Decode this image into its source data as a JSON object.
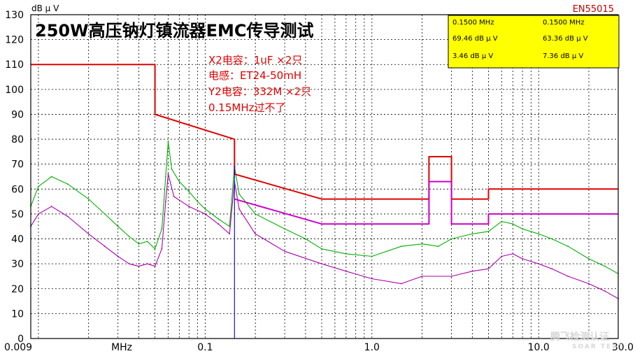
{
  "chart_data": {
    "type": "line",
    "title": "250W高压钠灯镇流器EMC传导测试",
    "ylabel": "dB μ V",
    "standard": "EN55015",
    "xscale": "log",
    "xlim": [
      0.009,
      30.0
    ],
    "ylim": [
      0,
      130
    ],
    "grid": true,
    "x_tick_labels": [
      {
        "value": 0.009,
        "label": "0.009"
      },
      {
        "value": 0.0316,
        "label": "MHz"
      },
      {
        "value": 0.1,
        "label": "0.1"
      },
      {
        "value": 1.0,
        "label": "1.0"
      },
      {
        "value": 10.0,
        "label": "10.0"
      },
      {
        "value": 30.0,
        "label": "30.0"
      }
    ],
    "y_ticks": [
      0,
      10,
      20,
      30,
      40,
      50,
      60,
      70,
      80,
      90,
      100,
      110,
      120,
      130
    ],
    "annotations": [
      "X2电容：1uF ×2只",
      "电感：ET24-50mH",
      "Y2电容：332M ×2只",
      "0.15MHz过不了"
    ],
    "marker_table": [
      [
        "0.1500 MHz",
        "0.1500 MHz"
      ],
      [
        "69.46 dB μ V",
        "63.36 dB μ V"
      ],
      [
        "3.46 dB μ V",
        "7.36 dB μ V"
      ]
    ],
    "watermark": "腾飞检测认证",
    "watermark_sub": "SOAR TEST",
    "series": [
      {
        "role": "quasi-peak limit",
        "color": "#e00000",
        "points": [
          [
            0.009,
            110
          ],
          [
            0.05,
            110
          ],
          [
            0.05,
            90
          ],
          [
            0.15,
            80
          ],
          [
            0.15,
            66
          ],
          [
            0.5,
            56
          ],
          [
            2.2,
            56
          ],
          [
            2.2,
            73
          ],
          [
            3.0,
            73
          ],
          [
            3.0,
            56
          ],
          [
            5.0,
            56
          ],
          [
            5.0,
            60
          ],
          [
            30.0,
            60
          ]
        ]
      },
      {
        "role": "average limit",
        "color": "#cc00cc",
        "points": [
          [
            0.15,
            56
          ],
          [
            0.5,
            46
          ],
          [
            2.2,
            46
          ],
          [
            2.2,
            63
          ],
          [
            3.0,
            63
          ],
          [
            3.0,
            46
          ],
          [
            5.0,
            46
          ],
          [
            5.0,
            50
          ],
          [
            30.0,
            50
          ]
        ]
      },
      {
        "role": "quasi-peak measurement",
        "color": "#00b000",
        "points": [
          [
            0.009,
            53
          ],
          [
            0.01,
            61
          ],
          [
            0.012,
            65
          ],
          [
            0.015,
            62
          ],
          [
            0.02,
            56
          ],
          [
            0.025,
            50
          ],
          [
            0.03,
            45
          ],
          [
            0.035,
            41
          ],
          [
            0.04,
            38
          ],
          [
            0.045,
            39
          ],
          [
            0.05,
            36
          ],
          [
            0.055,
            44
          ],
          [
            0.058,
            65
          ],
          [
            0.06,
            79
          ],
          [
            0.063,
            68
          ],
          [
            0.07,
            63
          ],
          [
            0.08,
            59
          ],
          [
            0.09,
            55
          ],
          [
            0.1,
            52
          ],
          [
            0.12,
            48
          ],
          [
            0.14,
            45
          ],
          [
            0.15,
            69
          ],
          [
            0.16,
            58
          ],
          [
            0.2,
            50
          ],
          [
            0.3,
            44
          ],
          [
            0.4,
            40
          ],
          [
            0.5,
            36
          ],
          [
            0.7,
            34
          ],
          [
            1.0,
            33
          ],
          [
            1.5,
            37
          ],
          [
            2.0,
            38
          ],
          [
            2.5,
            37
          ],
          [
            3.0,
            40
          ],
          [
            4.0,
            42
          ],
          [
            5.0,
            43
          ],
          [
            6.0,
            47
          ],
          [
            7.0,
            46
          ],
          [
            8.0,
            44
          ],
          [
            10.0,
            42
          ],
          [
            12.0,
            40
          ],
          [
            15.0,
            37
          ],
          [
            20.0,
            32
          ],
          [
            25.0,
            29
          ],
          [
            30.0,
            26
          ]
        ]
      },
      {
        "role": "average measurement",
        "color": "#aa00aa",
        "points": [
          [
            0.009,
            45
          ],
          [
            0.01,
            50
          ],
          [
            0.012,
            53
          ],
          [
            0.015,
            49
          ],
          [
            0.02,
            42
          ],
          [
            0.025,
            37
          ],
          [
            0.03,
            33
          ],
          [
            0.035,
            30
          ],
          [
            0.04,
            29
          ],
          [
            0.045,
            30
          ],
          [
            0.05,
            29
          ],
          [
            0.055,
            36
          ],
          [
            0.058,
            55
          ],
          [
            0.06,
            66
          ],
          [
            0.065,
            57
          ],
          [
            0.08,
            53
          ],
          [
            0.1,
            50
          ],
          [
            0.12,
            46
          ],
          [
            0.14,
            42
          ],
          [
            0.15,
            63
          ],
          [
            0.16,
            52
          ],
          [
            0.2,
            42
          ],
          [
            0.3,
            35
          ],
          [
            0.5,
            30
          ],
          [
            0.7,
            27
          ],
          [
            1.0,
            24
          ],
          [
            1.5,
            22
          ],
          [
            2.0,
            25
          ],
          [
            3.0,
            25
          ],
          [
            4.0,
            27
          ],
          [
            5.0,
            28
          ],
          [
            6.0,
            33
          ],
          [
            7.0,
            34
          ],
          [
            8.0,
            32
          ],
          [
            10.0,
            30
          ],
          [
            12.0,
            28
          ],
          [
            15.0,
            25
          ],
          [
            20.0,
            22
          ],
          [
            25.0,
            19
          ],
          [
            30.0,
            16
          ]
        ]
      },
      {
        "role": "marker",
        "color": "#0000dd",
        "points": [
          [
            0.15,
            0
          ],
          [
            0.15,
            69.46
          ]
        ]
      }
    ]
  }
}
